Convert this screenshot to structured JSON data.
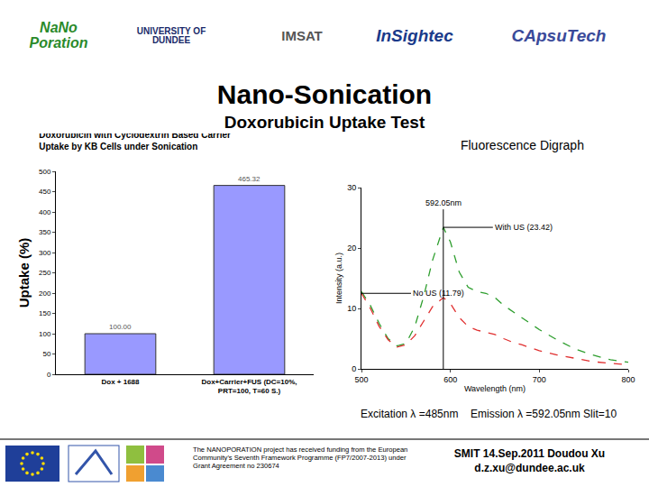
{
  "slide": {
    "logos": [
      "NaNo Poration",
      "UNIVERSITY OF DUNDEE",
      "IMSAT",
      "InSightec",
      "CApsuTech"
    ],
    "title": "Nano-Sonication",
    "subtitle": "Doxorubicin Uptake Test",
    "notes": [
      "Excitation λ =485nm",
      "Emission λ =592.05nm Slit=10"
    ],
    "footer": {
      "funding": "The NANOPORATION project has received funding from the European Community's Seventh Framework Programme (FP7/2007-2013) under Grant Agreement no 230674",
      "event": "SMIT 14.Sep.2011 Doudou Xu",
      "email": "d.z.xu@dundee.ac.uk"
    }
  },
  "chart_data": [
    {
      "type": "bar",
      "title": "Doxorubicin with Cyclodextrin Based Carrier Uptake by KB Cells under Sonication",
      "y_label": "Uptake (%)",
      "categories": [
        "Dox + 1688",
        "Dox+Carrier+FUS (DC=10%, PRT=100, T=60 S.)"
      ],
      "values": [
        100,
        465.32
      ],
      "value_labels": [
        "100.00",
        "465.32"
      ],
      "data_labels": true,
      "color": "#9999ff",
      "ylim": [
        0,
        500
      ],
      "yticks": [
        0,
        50,
        100,
        150,
        200,
        250,
        300,
        350,
        400,
        450,
        500
      ],
      "grid": false
    },
    {
      "type": "line",
      "title": "Fluorescence Digraph",
      "x_label": "Wavelength (nm)",
      "y_label": "Intensity (a.u.)",
      "x": [
        500,
        510,
        520,
        530,
        540,
        550,
        560,
        570,
        580,
        592.05,
        600,
        610,
        620,
        630,
        640,
        650,
        660,
        670,
        680,
        690,
        700,
        720,
        740,
        760,
        780,
        800
      ],
      "series": [
        {
          "name": "With US (23.42)",
          "color": "#2e9e2e",
          "line_style": "dashed",
          "values": [
            12.8,
            10.5,
            7.5,
            5,
            3.8,
            4.2,
            7,
            12,
            18,
            23.42,
            21,
            16,
            13.5,
            12.8,
            12.5,
            11.8,
            10.5,
            9.5,
            8.5,
            7.5,
            6.5,
            4.8,
            3.3,
            2.3,
            1.5,
            1.1
          ]
        },
        {
          "name": "No US (11.79)",
          "color": "#e03030",
          "line_style": "dashed",
          "values": [
            12.5,
            10,
            7,
            4.8,
            3.6,
            4,
            5.5,
            8,
            10.3,
            11.79,
            10.8,
            8.5,
            7,
            6.4,
            6.1,
            5.7,
            5,
            4.4,
            4,
            3.5,
            3,
            2.3,
            1.7,
            1.2,
            0.9,
            0.7
          ]
        }
      ],
      "annotations": [
        {
          "text": "592.05nm",
          "x": 592.05
        }
      ],
      "xlim": [
        500,
        800
      ],
      "xticks": [
        500,
        600,
        700,
        800
      ],
      "ylim": [
        0,
        30
      ],
      "yticks": [
        0,
        10,
        20,
        30
      ],
      "grid": false
    }
  ]
}
